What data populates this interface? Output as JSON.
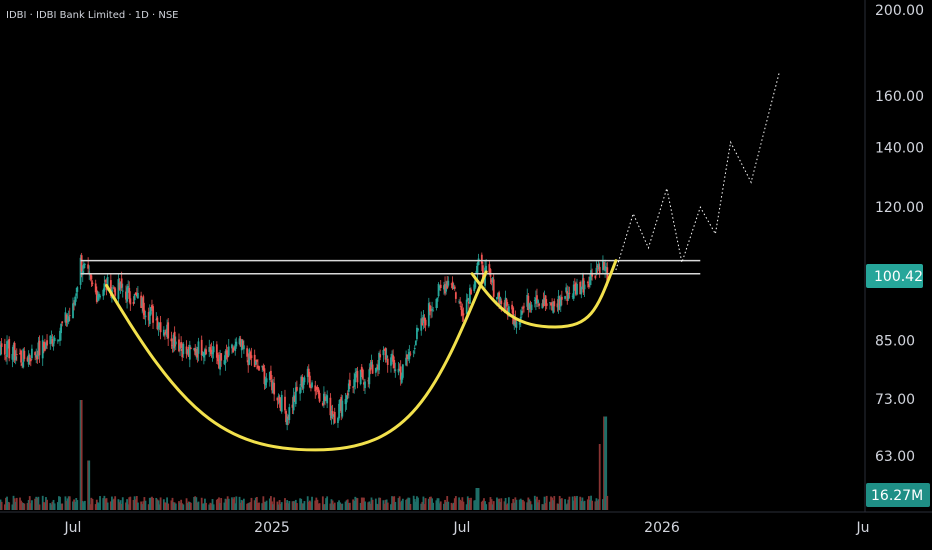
{
  "header": {
    "legend": "IDBI · IDBI Bank Limited · 1D · NSE"
  },
  "colors": {
    "background": "#000000",
    "up": "#26a69a",
    "down": "#ef5350",
    "pattern": "#f2e14c",
    "resistance": "#d9d9d9",
    "projection": "#ffffff",
    "price_badge": "#26a69a",
    "axis_text": "#d1d4dc"
  },
  "chart_data": {
    "type": "candlestick",
    "symbol": "IDBI",
    "name": "IDBI Bank Limited",
    "interval": "1D",
    "exchange": "NSE",
    "y_axis": {
      "scale": "log",
      "ticks": [
        200,
        160,
        140,
        120,
        85,
        73,
        63
      ]
    },
    "x_axis": {
      "labels": [
        "Jul",
        "2025",
        "Jul",
        "2026",
        "Ju"
      ]
    },
    "last_price": {
      "label": "100.42",
      "value": 100.42
    },
    "last_volume": {
      "label": "16.27M"
    },
    "resistance_levels": [
      104.5,
      101.0
    ],
    "price_path": [
      [
        "2024-04-01",
        88
      ],
      [
        "2024-04-15",
        85
      ],
      [
        "2024-05-01",
        83
      ],
      [
        "2024-05-15",
        81
      ],
      [
        "2024-06-01",
        83
      ],
      [
        "2024-06-15",
        86
      ],
      [
        "2024-07-01",
        92
      ],
      [
        "2024-07-08",
        104
      ],
      [
        "2024-07-15",
        100
      ],
      [
        "2024-07-22",
        96
      ],
      [
        "2024-08-01",
        98
      ],
      [
        "2024-08-15",
        97
      ],
      [
        "2024-09-01",
        94
      ],
      [
        "2024-09-15",
        90
      ],
      [
        "2024-10-01",
        86
      ],
      [
        "2024-10-15",
        82
      ],
      [
        "2024-11-01",
        84
      ],
      [
        "2024-11-15",
        80
      ],
      [
        "2024-12-01",
        84
      ],
      [
        "2024-12-15",
        80
      ],
      [
        "2025-01-01",
        76
      ],
      [
        "2025-01-15",
        70
      ],
      [
        "2025-02-01",
        78
      ],
      [
        "2025-02-15",
        74
      ],
      [
        "2025-03-01",
        70
      ],
      [
        "2025-03-15",
        76
      ],
      [
        "2025-04-01",
        78
      ],
      [
        "2025-04-15",
        82
      ],
      [
        "2025-05-01",
        78
      ],
      [
        "2025-05-15",
        86
      ],
      [
        "2025-06-01",
        95
      ],
      [
        "2025-06-15",
        100
      ],
      [
        "2025-06-25",
        92
      ],
      [
        "2025-07-01",
        95
      ],
      [
        "2025-07-10",
        103
      ],
      [
        "2025-07-20",
        100
      ],
      [
        "2025-08-01",
        94
      ],
      [
        "2025-08-15",
        90
      ],
      [
        "2025-09-01",
        96
      ],
      [
        "2025-09-15",
        92
      ],
      [
        "2025-10-01",
        96
      ],
      [
        "2025-10-15",
        98
      ],
      [
        "2025-11-01",
        104
      ],
      [
        "2025-11-08",
        100.42
      ]
    ],
    "volume_profile": [
      [
        "2024-07-08",
        1.0
      ],
      [
        "2024-07-15",
        0.45
      ],
      [
        "2025-07-10",
        0.2
      ],
      [
        "2025-11-01",
        0.6
      ],
      [
        "2025-11-05",
        0.85
      ]
    ],
    "projection": [
      [
        "2025-11-15",
        102
      ],
      [
        "2025-12-01",
        118
      ],
      [
        "2025-12-15",
        108
      ],
      [
        "2026-01-01",
        126
      ],
      [
        "2026-01-15",
        104
      ],
      [
        "2026-02-01",
        120
      ],
      [
        "2026-02-15",
        112
      ],
      [
        "2026-03-01",
        142
      ],
      [
        "2026-03-20",
        128
      ],
      [
        "2026-04-15",
        170
      ]
    ],
    "arcs": [
      {
        "from": [
          "2024-08-01",
          98
        ],
        "bottom": [
          "2025-02-10",
          64
        ],
        "to": [
          "2025-07-18",
          101.5
        ]
      },
      {
        "from": [
          "2025-07-05",
          101
        ],
        "bottom": [
          "2025-09-20",
          88
        ],
        "to": [
          "2025-11-15",
          104.5
        ]
      }
    ]
  }
}
